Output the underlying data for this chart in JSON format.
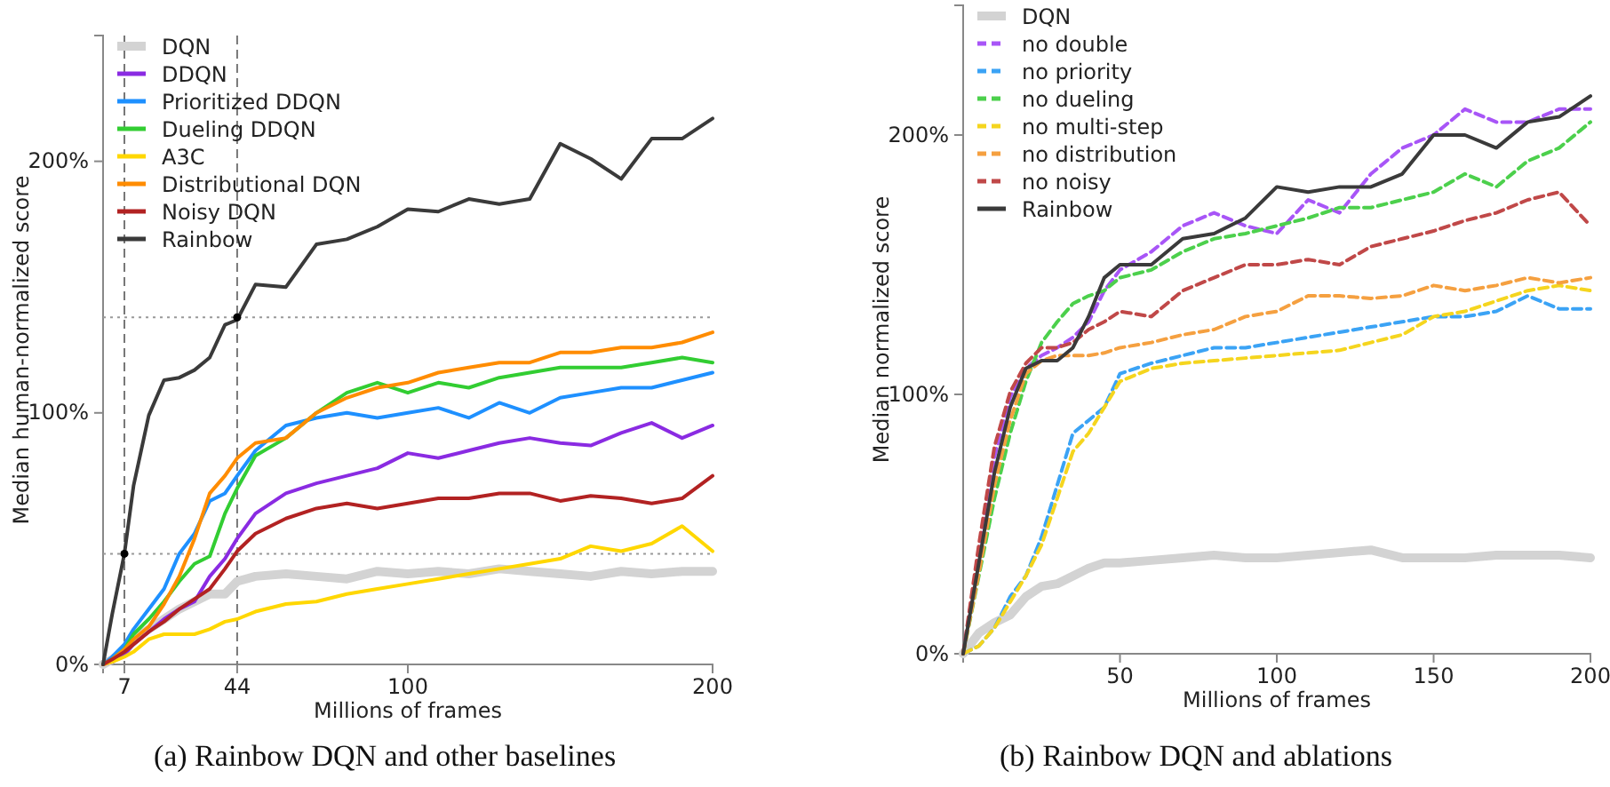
{
  "chart_data": [
    {
      "type": "line",
      "title": "(a) Rainbow DQN and other baselines",
      "xlabel": "Millions of frames",
      "ylabel": "Median human-normalized score",
      "x": [
        0,
        3,
        7,
        10,
        15,
        20,
        25,
        30,
        35,
        40,
        44,
        50,
        60,
        70,
        80,
        90,
        100,
        110,
        120,
        130,
        140,
        150,
        160,
        170,
        180,
        190,
        200
      ],
      "xlim": [
        0,
        200
      ],
      "xticks": [
        7,
        44,
        100,
        200
      ],
      "ylim": [
        0,
        250
      ],
      "yticks": [
        {
          "value": 0,
          "label": "0%"
        },
        {
          "value": 100,
          "label": "100%"
        },
        {
          "value": 200,
          "label": "200%"
        }
      ],
      "grid": false,
      "legend": "top left",
      "marker": "none",
      "series": [
        {
          "name": "DQN",
          "color": "#d3d3d3",
          "values": [
            0,
            2,
            5,
            10,
            14,
            18,
            22,
            25,
            28,
            28,
            33,
            35,
            36,
            35,
            34,
            37,
            36,
            37,
            36,
            38,
            37,
            36,
            35,
            37,
            36,
            37,
            37
          ]
        },
        {
          "name": "DDQN",
          "color": "#8a2be2",
          "values": [
            0,
            1,
            4,
            8,
            13,
            18,
            22,
            25,
            35,
            42,
            50,
            60,
            68,
            72,
            75,
            78,
            84,
            82,
            85,
            88,
            90,
            88,
            87,
            92,
            96,
            90,
            95
          ]
        },
        {
          "name": "Prioritized DDQN",
          "color": "#1e90ff",
          "values": [
            0,
            3,
            8,
            14,
            22,
            30,
            44,
            52,
            65,
            68,
            75,
            85,
            95,
            98,
            100,
            98,
            100,
            102,
            98,
            104,
            100,
            106,
            108,
            110,
            110,
            113,
            116
          ]
        },
        {
          "name": "Dueling DDQN",
          "color": "#32cd32",
          "values": [
            0,
            2,
            6,
            12,
            18,
            25,
            33,
            40,
            43,
            60,
            70,
            83,
            90,
            100,
            108,
            112,
            108,
            112,
            110,
            114,
            116,
            118,
            118,
            118,
            120,
            122,
            120
          ]
        },
        {
          "name": "A3C",
          "color": "#ffd700",
          "values": [
            0,
            1,
            3,
            5,
            10,
            12,
            12,
            12,
            14,
            17,
            18,
            21,
            24,
            25,
            28,
            30,
            32,
            34,
            36,
            38,
            40,
            42,
            47,
            45,
            48,
            55,
            45
          ]
        },
        {
          "name": "Distributional DQN",
          "color": "#ff8c00",
          "values": [
            0,
            2,
            6,
            10,
            15,
            24,
            35,
            50,
            68,
            75,
            82,
            88,
            90,
            100,
            106,
            110,
            112,
            116,
            118,
            120,
            120,
            124,
            124,
            126,
            126,
            128,
            132
          ]
        },
        {
          "name": "Noisy DQN",
          "color": "#b22222",
          "values": [
            0,
            2,
            5,
            8,
            13,
            17,
            22,
            26,
            30,
            38,
            45,
            52,
            58,
            62,
            64,
            62,
            64,
            66,
            66,
            68,
            68,
            65,
            67,
            66,
            64,
            66,
            75
          ]
        },
        {
          "name": "Rainbow",
          "color": "#3a3a3a",
          "values": [
            0,
            20,
            44,
            71,
            99,
            113,
            114,
            117,
            122,
            135,
            137,
            151,
            150,
            167,
            169,
            174,
            181,
            180,
            185,
            183,
            185,
            207,
            201,
            193,
            209,
            209,
            217
          ]
        },
        {
          "type": "scatter",
          "color": "#000000",
          "marker": "circle",
          "x": [
            7,
            44
          ],
          "values": [
            44,
            138
          ]
        }
      ],
      "ref_lines": [
        {
          "axis": "y",
          "value": 138,
          "line_style": "dotted",
          "color": "#999999"
        },
        {
          "axis": "y",
          "value": 44,
          "line_style": "dotted",
          "color": "#999999"
        },
        {
          "axis": "x",
          "value": 7,
          "line_style": "dashed",
          "color": "#777777"
        },
        {
          "axis": "x",
          "value": 44,
          "line_style": "dashed",
          "color": "#777777"
        }
      ]
    },
    {
      "type": "line",
      "title": "(b) Rainbow DQN and ablations",
      "xlabel": "Millions of frames",
      "ylabel": "Median normalized score",
      "x": [
        0,
        5,
        10,
        15,
        20,
        25,
        30,
        35,
        40,
        45,
        50,
        60,
        70,
        80,
        90,
        100,
        110,
        120,
        130,
        140,
        150,
        160,
        170,
        180,
        190,
        200
      ],
      "xlim": [
        0,
        200
      ],
      "xticks": [
        50,
        100,
        150,
        200
      ],
      "ylim": [
        0,
        250
      ],
      "yticks": [
        {
          "value": 0,
          "label": "0%"
        },
        {
          "value": 100,
          "label": "100%"
        },
        {
          "value": 200,
          "label": "200%"
        }
      ],
      "grid": false,
      "legend": "top left",
      "marker": "none",
      "series": [
        {
          "name": "DQN",
          "color": "#d3d3d3",
          "values": [
            0,
            8,
            12,
            15,
            22,
            26,
            27,
            30,
            33,
            35,
            35,
            36,
            37,
            38,
            37,
            37,
            38,
            39,
            40,
            37,
            37,
            37,
            38,
            38,
            38,
            37
          ]
        },
        {
          "name": "no double",
          "color": "#a855f7",
          "line_style": "dashed",
          "values": [
            0,
            39,
            76,
            99,
            110,
            115,
            118,
            122,
            128,
            140,
            148,
            155,
            165,
            170,
            165,
            162,
            175,
            170,
            185,
            195,
            200,
            210,
            205,
            205,
            210,
            210
          ]
        },
        {
          "name": "no priority",
          "color": "#3ba3f5",
          "line_style": "dashed",
          "values": [
            0,
            3,
            10,
            22,
            30,
            45,
            65,
            85,
            90,
            95,
            108,
            112,
            115,
            118,
            118,
            120,
            122,
            124,
            126,
            128,
            130,
            130,
            132,
            138,
            133,
            133
          ]
        },
        {
          "name": "no dueling",
          "color": "#4cd04c",
          "line_style": "dashed",
          "values": [
            0,
            30,
            60,
            85,
            105,
            120,
            128,
            135,
            138,
            140,
            145,
            148,
            155,
            160,
            162,
            165,
            168,
            172,
            172,
            175,
            178,
            185,
            180,
            190,
            195,
            205
          ]
        },
        {
          "name": "no multi-step",
          "color": "#f5d51e",
          "line_style": "dashed",
          "values": [
            0,
            3,
            10,
            20,
            30,
            42,
            60,
            78,
            85,
            95,
            105,
            110,
            112,
            113,
            114,
            115,
            116,
            117,
            120,
            123,
            130,
            132,
            136,
            140,
            142,
            140
          ]
        },
        {
          "name": "no distribution",
          "color": "#f5a040",
          "line_style": "dashed",
          "values": [
            0,
            31,
            65,
            90,
            108,
            113,
            115,
            115,
            115,
            116,
            118,
            120,
            123,
            125,
            130,
            132,
            138,
            138,
            137,
            138,
            142,
            140,
            142,
            145,
            143,
            145
          ]
        },
        {
          "name": "no noisy",
          "color": "#c04848",
          "line_style": "dashed",
          "values": [
            0,
            42,
            80,
            101,
            112,
            118,
            118,
            120,
            125,
            128,
            132,
            130,
            140,
            145,
            150,
            150,
            152,
            150,
            157,
            160,
            163,
            167,
            170,
            175,
            178,
            165
          ]
        },
        {
          "name": "Rainbow",
          "color": "#3a3a3a",
          "line_style": "solid",
          "values": [
            0,
            35,
            70,
            95,
            110,
            113,
            113,
            118,
            130,
            145,
            150,
            150,
            160,
            162,
            168,
            180,
            178,
            180,
            180,
            185,
            200,
            200,
            195,
            205,
            207,
            215
          ]
        }
      ]
    }
  ]
}
